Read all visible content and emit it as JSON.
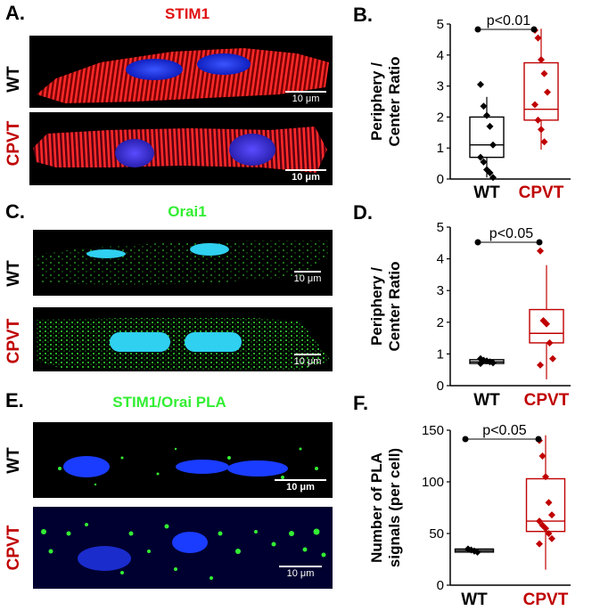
{
  "colors": {
    "wt": "#000000",
    "cpvt": "#c00000",
    "stim1": "#ff2020",
    "orai": "#33ee33",
    "nucleus": "#1a3cff",
    "nucleus_cyan": "#2fd0f0"
  },
  "panels": {
    "A": {
      "letter": "A.",
      "title": "STIM1",
      "rows": [
        "WT",
        "CPVT"
      ],
      "scale_label": "10 μm"
    },
    "B": {
      "letter": "B."
    },
    "C": {
      "letter": "C.",
      "title": "Orai1",
      "rows": [
        "WT",
        "CPVT"
      ],
      "scale_label": "10 μm"
    },
    "D": {
      "letter": "D."
    },
    "E": {
      "letter": "E.",
      "title": "STIM1/Orai PLA",
      "rows": [
        "WT",
        "CPVT"
      ],
      "scale_label": "10 μm"
    },
    "F": {
      "letter": "F."
    }
  },
  "chart_data": [
    {
      "type": "box",
      "panel": "B",
      "ylabel": "Periphery / Center Ratio",
      "ylabel_lines": [
        "Periphery /",
        "Center Ratio"
      ],
      "categories": [
        "WT",
        "CPVT"
      ],
      "ylim": [
        0,
        5
      ],
      "yticks": [
        0,
        1,
        2,
        3,
        4,
        5
      ],
      "significance": "p<0.01",
      "boxes": [
        {
          "name": "WT",
          "q1": 0.7,
          "median": 1.1,
          "q3": 2.0,
          "whisker_low": 0.05,
          "whisker_high": 2.65
        },
        {
          "name": "CPVT",
          "q1": 1.9,
          "median": 2.25,
          "q3": 3.75,
          "whisker_low": 0.95,
          "whisker_high": 4.85
        }
      ],
      "points": [
        {
          "group": "WT",
          "values": [
            3.05,
            2.35,
            2.05,
            1.7,
            1.1,
            0.7,
            0.55,
            0.3,
            0.2,
            0.05
          ]
        },
        {
          "group": "CPVT",
          "values": [
            4.8,
            4.55,
            3.85,
            3.4,
            2.8,
            2.4,
            1.9,
            1.6,
            1.2
          ]
        }
      ]
    },
    {
      "type": "box",
      "panel": "D",
      "ylabel": "Periphery / Center Ratio",
      "ylabel_lines": [
        "Periphery /",
        "Center Ratio"
      ],
      "categories": [
        "WT",
        "CPVT"
      ],
      "ylim": [
        0,
        5
      ],
      "yticks": [
        0,
        1,
        2,
        3,
        4,
        5
      ],
      "significance": "p<0.05",
      "boxes": [
        {
          "name": "WT",
          "q1": 0.7,
          "median": 0.75,
          "q3": 0.82,
          "whisker_low": 0.68,
          "whisker_high": 0.85
        },
        {
          "name": "CPVT",
          "q1": 1.35,
          "median": 1.65,
          "q3": 2.4,
          "whisker_low": 0.2,
          "whisker_high": 3.8
        }
      ],
      "points": [
        {
          "group": "WT",
          "values": [
            0.85,
            0.8,
            0.78,
            0.75,
            0.72,
            0.7
          ]
        },
        {
          "group": "CPVT",
          "values": [
            4.25,
            2.05,
            1.95,
            1.35,
            0.85,
            0.65
          ]
        }
      ]
    },
    {
      "type": "box",
      "panel": "F",
      "ylabel": "Number of PLA signals (per cell)",
      "ylabel_lines": [
        "Number of PLA",
        "signals (per cell)"
      ],
      "categories": [
        "WT",
        "CPVT"
      ],
      "ylim": [
        0,
        150
      ],
      "yticks": [
        0,
        50,
        100,
        150
      ],
      "significance": "p<0.05",
      "boxes": [
        {
          "name": "WT",
          "q1": 32,
          "median": 33.5,
          "q3": 35,
          "whisker_low": 31,
          "whisker_high": 36
        },
        {
          "name": "CPVT",
          "q1": 52,
          "median": 62,
          "q3": 103,
          "whisker_low": 15,
          "whisker_high": 145
        }
      ],
      "points": [
        {
          "group": "WT",
          "values": [
            35,
            34,
            33,
            32
          ]
        },
        {
          "group": "CPVT",
          "values": [
            140,
            125,
            105,
            80,
            68,
            62,
            58,
            55,
            50,
            45,
            40
          ]
        }
      ]
    }
  ]
}
